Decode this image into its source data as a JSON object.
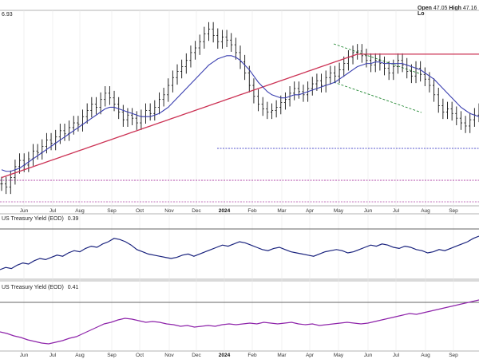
{
  "header": {
    "open_label": "Open",
    "open_value": "47.05",
    "high_label": "High",
    "high_value": "47.16",
    "low_label": "Lo"
  },
  "price_axis_fragment": "6.93",
  "panel2": {
    "label": "US Treasury Yield (EOD)",
    "value": "0.39"
  },
  "panel3": {
    "label": "US Treasury Yield (EOD)",
    "value": "0.41"
  },
  "colors": {
    "price_bars": "#111111",
    "ma_short": "#3a3fb0",
    "ma_long": "#cc3355",
    "support_line": "#5555cc",
    "channel": "#228833",
    "panel2_line": "#1a237e",
    "panel3_line": "#8e24aa",
    "guide_line": "#b04aa8"
  },
  "chart_data": [
    {
      "type": "ohlc",
      "x_ticks": [
        "Jun",
        "Jul",
        "Aug",
        "Sep",
        "Oct",
        "Nov",
        "Dec",
        "2024",
        "Feb",
        "Mar",
        "Apr",
        "May",
        "Jun",
        "Jul",
        "Aug",
        "Sep"
      ],
      "closes": [
        41.5,
        41.3,
        41.9,
        42.6,
        43.0,
        42.7,
        43.1,
        43.6,
        43.5,
        43.9,
        44.3,
        44.1,
        44.5,
        44.9,
        44.7,
        45.1,
        45.4,
        45.3,
        45.8,
        46.2,
        46.6,
        46.4,
        46.9,
        47.3,
        47.0,
        46.6,
        46.1,
        45.6,
        45.9,
        45.7,
        45.4,
        45.8,
        46.2,
        46.0,
        46.4,
        46.9,
        47.2,
        47.8,
        48.3,
        48.7,
        49.0,
        49.4,
        49.9,
        50.2,
        50.6,
        51.1,
        51.4,
        51.0,
        50.6,
        50.9,
        50.7,
        50.4,
        49.9,
        49.3,
        48.6,
        47.8,
        47.1,
        46.6,
        46.3,
        46.1,
        46.2,
        46.4,
        46.7,
        46.9,
        47.3,
        47.6,
        47.4,
        47.2,
        47.6,
        47.9,
        48.1,
        47.8,
        48.3,
        48.6,
        48.4,
        48.8,
        49.2,
        49.6,
        49.9,
        50.0,
        49.7,
        49.4,
        49.1,
        49.4,
        49.2,
        48.9,
        48.6,
        49.0,
        49.4,
        49.1,
        48.7,
        48.4,
        48.9,
        48.5,
        48.2,
        47.8,
        47.2,
        46.5,
        46.1,
        46.3,
        46.0,
        45.7,
        45.4,
        45.2,
        45.6,
        45.9,
        46.2
      ],
      "ma_short": [
        42.4,
        42.3,
        42.3,
        42.4,
        42.5,
        42.7,
        42.9,
        43.1,
        43.3,
        43.5,
        43.7,
        43.9,
        44.1,
        44.3,
        44.5,
        44.7,
        44.9,
        45.1,
        45.3,
        45.5,
        45.7,
        45.9,
        46.1,
        46.3,
        46.4,
        46.4,
        46.3,
        46.2,
        46.1,
        46.0,
        45.9,
        45.8,
        45.8,
        45.8,
        45.9,
        46.0,
        46.2,
        46.4,
        46.7,
        47.0,
        47.3,
        47.6,
        47.9,
        48.2,
        48.5,
        48.8,
        49.1,
        49.3,
        49.5,
        49.6,
        49.7,
        49.7,
        49.6,
        49.4,
        49.1,
        48.8,
        48.4,
        48.0,
        47.7,
        47.4,
        47.2,
        47.1,
        47.0,
        47.0,
        47.1,
        47.2,
        47.2,
        47.3,
        47.4,
        47.5,
        47.6,
        47.7,
        47.8,
        47.9,
        48.0,
        48.2,
        48.4,
        48.6,
        48.8,
        49.0,
        49.1,
        49.2,
        49.2,
        49.3,
        49.3,
        49.2,
        49.2,
        49.2,
        49.2,
        49.2,
        49.1,
        49.0,
        48.9,
        48.8,
        48.6,
        48.4,
        48.2,
        47.9,
        47.6,
        47.3,
        47.0,
        46.7,
        46.4,
        46.2,
        46.0,
        45.9,
        45.8
      ],
      "ma_long": [
        41.9,
        42.0,
        42.1,
        42.2,
        42.3,
        42.4,
        42.5,
        42.6,
        42.7,
        42.8,
        42.9,
        43.0,
        43.1,
        43.2,
        43.3,
        43.4,
        43.5,
        43.6,
        43.7,
        43.8,
        43.9,
        44.0,
        44.1,
        44.2,
        44.3,
        44.4,
        44.5,
        44.6,
        44.7,
        44.8,
        44.9,
        45.0,
        45.1,
        45.2,
        45.3,
        45.4,
        45.5,
        45.6,
        45.7,
        45.8,
        45.9,
        46.0,
        46.1,
        46.2,
        46.3,
        46.4,
        46.5,
        46.6,
        46.7,
        46.8,
        46.9,
        47.0,
        47.1,
        47.2,
        47.3,
        47.4,
        47.5,
        47.6,
        47.7,
        47.8,
        47.9,
        48.0,
        48.1,
        48.2,
        48.3,
        48.4,
        48.5,
        48.6,
        48.7,
        48.8,
        48.9,
        49.0,
        49.1,
        49.2,
        49.3,
        49.4,
        49.5,
        49.6,
        49.7,
        49.8,
        49.8,
        49.8,
        49.8,
        49.8,
        49.8,
        49.8,
        49.8,
        49.8,
        49.8,
        49.8,
        49.8,
        49.8,
        49.8,
        49.8,
        49.8,
        49.8,
        49.8,
        49.8,
        49.8,
        49.8,
        49.8,
        49.8,
        49.8,
        49.8,
        49.8,
        49.8,
        49.8
      ],
      "ylim": [
        40.5,
        52.5
      ]
    },
    {
      "type": "line",
      "series": [
        {
          "values": [
            0.3,
            0.32,
            0.31,
            0.34,
            0.36,
            0.35,
            0.38,
            0.4,
            0.39,
            0.41,
            0.43,
            0.42,
            0.45,
            0.47,
            0.46,
            0.49,
            0.51,
            0.5,
            0.53,
            0.55,
            0.58,
            0.57,
            0.55,
            0.52,
            0.48,
            0.46,
            0.44,
            0.43,
            0.42,
            0.41,
            0.4,
            0.41,
            0.43,
            0.44,
            0.42,
            0.44,
            0.46,
            0.48,
            0.5,
            0.52,
            0.51,
            0.53,
            0.55,
            0.54,
            0.52,
            0.5,
            0.48,
            0.47,
            0.49,
            0.5,
            0.48,
            0.46,
            0.45,
            0.44,
            0.43,
            0.42,
            0.44,
            0.46,
            0.47,
            0.48,
            0.47,
            0.45,
            0.46,
            0.48,
            0.5,
            0.52,
            0.51,
            0.53,
            0.52,
            0.5,
            0.49,
            0.51,
            0.5,
            0.48,
            0.47,
            0.45,
            0.46,
            0.48,
            0.47,
            0.49,
            0.51,
            0.53,
            0.55,
            0.58,
            0.6
          ]
        }
      ],
      "ylim": [
        0.25,
        0.7
      ]
    },
    {
      "type": "line",
      "series": [
        {
          "values": [
            0.4,
            0.38,
            0.35,
            0.33,
            0.3,
            0.28,
            0.26,
            0.25,
            0.27,
            0.29,
            0.32,
            0.34,
            0.38,
            0.42,
            0.46,
            0.5,
            0.52,
            0.55,
            0.57,
            0.56,
            0.54,
            0.52,
            0.53,
            0.52,
            0.5,
            0.49,
            0.47,
            0.48,
            0.46,
            0.47,
            0.48,
            0.47,
            0.49,
            0.5,
            0.49,
            0.5,
            0.51,
            0.5,
            0.52,
            0.51,
            0.5,
            0.51,
            0.52,
            0.5,
            0.49,
            0.5,
            0.48,
            0.49,
            0.5,
            0.51,
            0.52,
            0.51,
            0.5,
            0.51,
            0.53,
            0.55,
            0.57,
            0.59,
            0.61,
            0.63,
            0.62,
            0.64,
            0.66,
            0.68,
            0.7,
            0.72,
            0.74,
            0.76,
            0.78,
            0.8
          ]
        }
      ],
      "ylim": [
        0.2,
        0.9
      ]
    }
  ]
}
